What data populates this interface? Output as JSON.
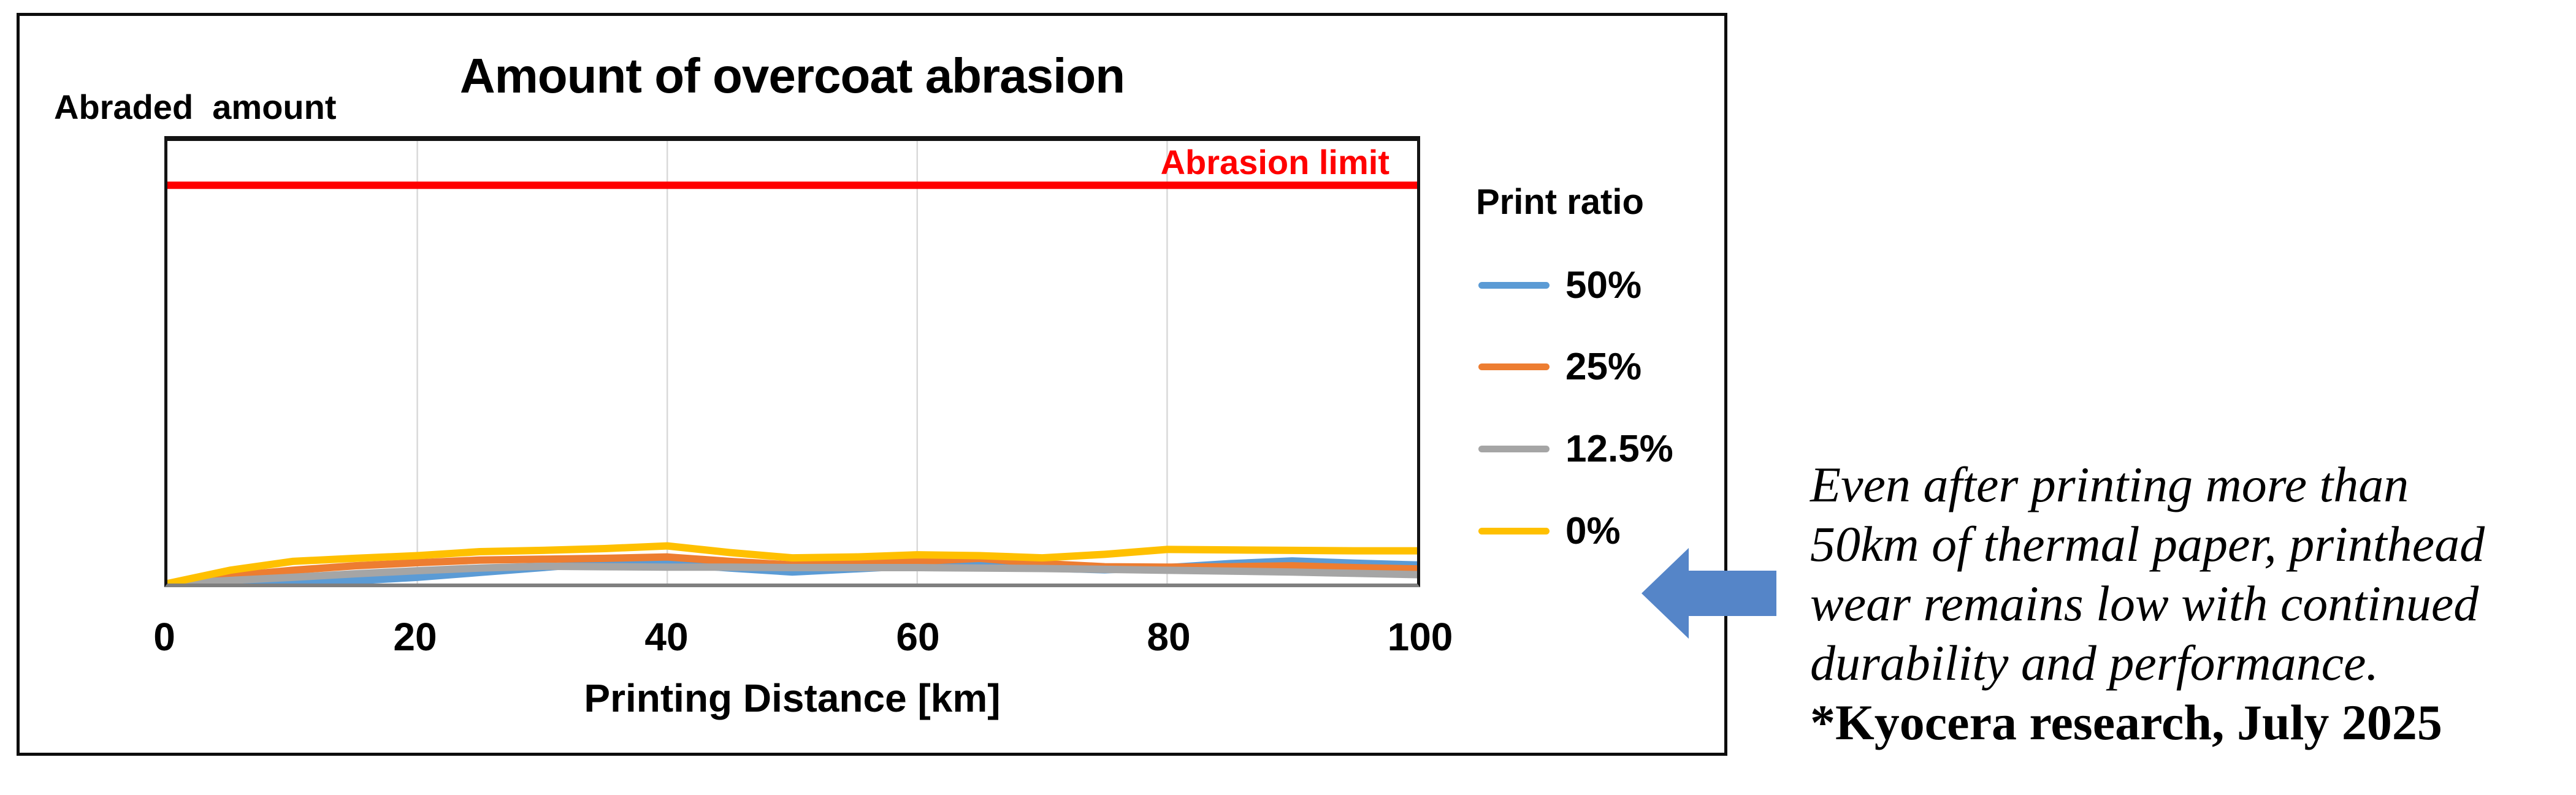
{
  "chart": {
    "title": "Amount of overcoat abrasion",
    "y_axis_label": "Abraded  amount",
    "x_axis_title": "Printing Distance [km]",
    "legend_title": "Print ratio",
    "limit_label": "Abrasion limit",
    "limit_color": "#FF0000",
    "gridline_color": "#D9D9D9",
    "border_color": "#0D0D0D"
  },
  "chart_data": {
    "type": "line",
    "title": "Amount of overcoat abrasion",
    "xlabel": "Printing Distance [km]",
    "ylabel": "Abraded amount",
    "xlim": [
      0,
      100
    ],
    "ylim": [
      0,
      1
    ],
    "x_ticks": [
      0,
      20,
      40,
      60,
      80,
      100
    ],
    "grid": "vertical gridlines at x ticks only",
    "legend_position": "right",
    "legend_title": "Print ratio",
    "x": [
      0,
      5,
      10,
      15,
      20,
      25,
      30,
      35,
      40,
      45,
      50,
      55,
      60,
      65,
      70,
      75,
      80,
      85,
      90,
      95,
      100
    ],
    "series": [
      {
        "name": "50%",
        "color": "#5B9BD5",
        "values": [
          0,
          0.002,
          0.005,
          0.006,
          0.014,
          0.025,
          0.036,
          0.047,
          0.045,
          0.035,
          0.026,
          0.033,
          0.04,
          0.046,
          0.035,
          0.031,
          0.036,
          0.045,
          0.051,
          0.046,
          0.042
        ]
      },
      {
        "name": "25%",
        "color": "#ED7D31",
        "values": [
          0,
          0.017,
          0.03,
          0.04,
          0.047,
          0.053,
          0.055,
          0.057,
          0.06,
          0.05,
          0.042,
          0.046,
          0.05,
          0.057,
          0.045,
          0.038,
          0.037,
          0.038,
          0.04,
          0.036,
          0.033
        ]
      },
      {
        "name": "12.5%",
        "color": "#A5A5A5",
        "values": [
          0,
          0.007,
          0.014,
          0.022,
          0.029,
          0.035,
          0.039,
          0.038,
          0.037,
          0.037,
          0.036,
          0.036,
          0.036,
          0.035,
          0.034,
          0.032,
          0.03,
          0.028,
          0.026,
          0.023,
          0.02
        ]
      },
      {
        "name": "0%",
        "color": "#FFC000",
        "values": [
          0,
          0.03,
          0.05,
          0.057,
          0.063,
          0.072,
          0.075,
          0.079,
          0.085,
          0.07,
          0.058,
          0.06,
          0.065,
          0.063,
          0.058,
          0.066,
          0.077,
          0.076,
          0.075,
          0.074,
          0.074
        ]
      }
    ],
    "limit_line": {
      "label": "Abrasion limit",
      "value": 0.9,
      "color": "#FF0000"
    },
    "annotations": [
      "Abrasion limit"
    ]
  },
  "annotation": {
    "lines": [
      "Even after printing more than",
      "50km of thermal paper, printhead",
      "wear remains low with continued",
      "durability and performance.",
      "*Kyocera research, July 2025"
    ]
  },
  "arrow": {
    "direction": "left",
    "color": "#5585C8"
  }
}
